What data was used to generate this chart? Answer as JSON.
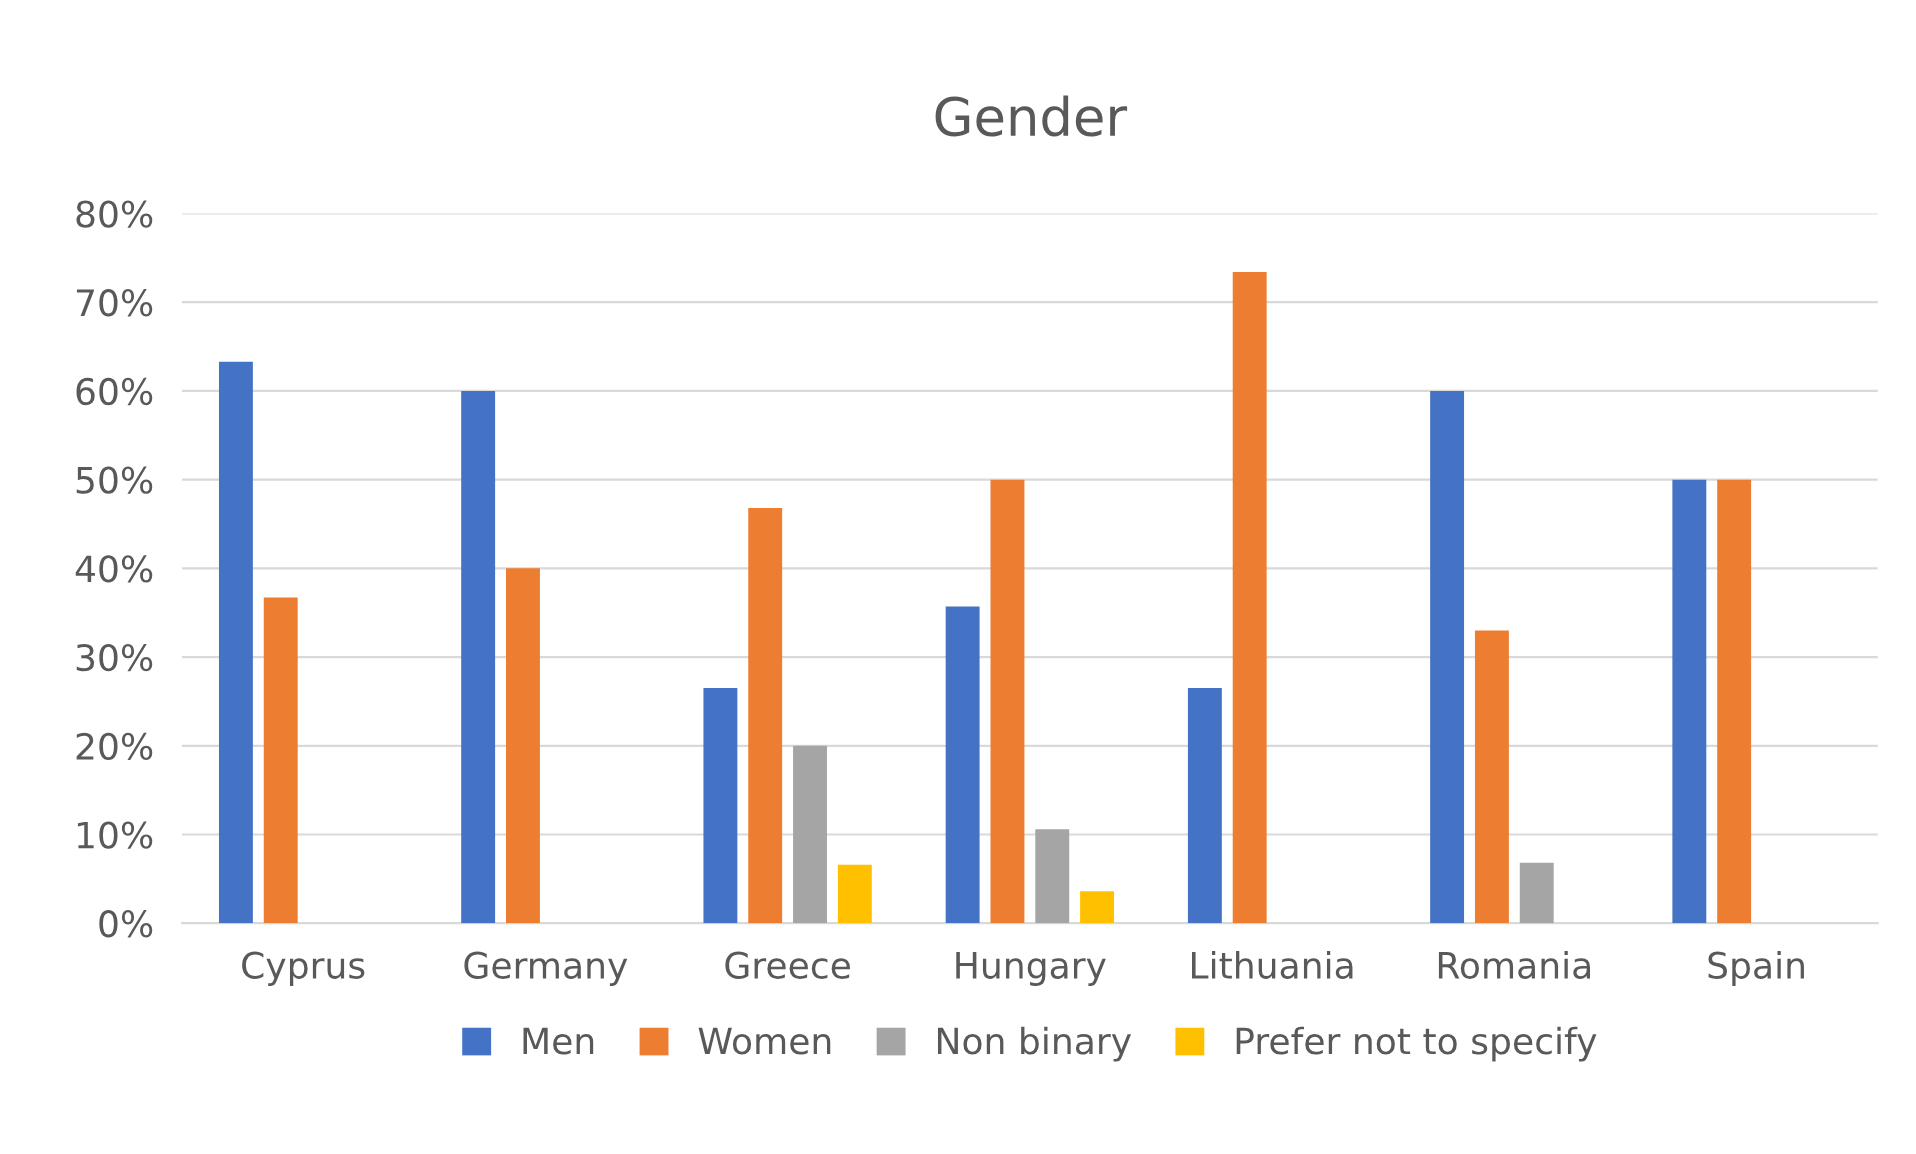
{
  "chart_data": {
    "type": "bar",
    "title": "Gender",
    "categories": [
      "Cyprus",
      "Germany",
      "Greece",
      "Hungary",
      "Lithuania",
      "Romania",
      "Spain"
    ],
    "series": [
      {
        "name": "Men",
        "color": "#4472c4",
        "values": [
          63.3,
          60,
          26.5,
          35.7,
          26.5,
          60,
          50
        ]
      },
      {
        "name": "Women",
        "color": "#ed7d31",
        "values": [
          36.7,
          40,
          46.8,
          50,
          73.4,
          33,
          50
        ]
      },
      {
        "name": "Non binary",
        "color": "#a5a5a5",
        "values": [
          0,
          0,
          20,
          10.6,
          0,
          6.8,
          0
        ]
      },
      {
        "name": "Prefer not to specify",
        "color": "#ffc000",
        "values": [
          0,
          0,
          6.6,
          3.6,
          0,
          0,
          0
        ]
      }
    ],
    "ylim": [
      0,
      80
    ],
    "yticks": [
      {
        "value": 0,
        "label": "0%"
      },
      {
        "value": 10,
        "label": "10%"
      },
      {
        "value": 20,
        "label": "20%"
      },
      {
        "value": 30,
        "label": "30%"
      },
      {
        "value": 40,
        "label": "40%"
      },
      {
        "value": 50,
        "label": "50%"
      },
      {
        "value": 60,
        "label": "60%"
      },
      {
        "value": 70,
        "label": "70%"
      },
      {
        "value": 80,
        "label": "80%"
      }
    ],
    "grid": "y",
    "legend": "bottom"
  }
}
